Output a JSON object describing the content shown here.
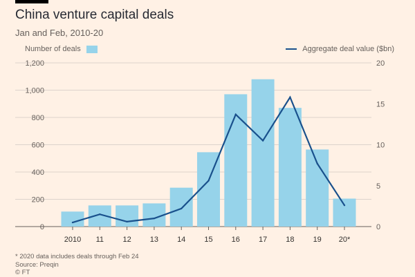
{
  "header": {
    "title": "China venture capital deals",
    "subtitle": "Jan and Feb, 2010-20"
  },
  "legend": {
    "bars_label": "Number of deals",
    "line_label": "Aggregate deal value ($bn)"
  },
  "colors": {
    "bar": "#96d3ea",
    "line": "#19508c",
    "grid": "#dcd3cc",
    "background": "#fff1e5"
  },
  "footer": {
    "note": "* 2020 data includes deals through Feb 24",
    "source": "Source: Preqin",
    "credit": "© FT"
  },
  "chart_data": {
    "type": "bar",
    "title": "China venture capital deals",
    "subtitle": "Jan and Feb, 2010-20",
    "categories": [
      "2010",
      "11",
      "12",
      "13",
      "14",
      "15",
      "16",
      "17",
      "18",
      "19",
      "20*"
    ],
    "series": [
      {
        "name": "Number of deals",
        "type": "bar",
        "axis": "left",
        "values": [
          110,
          155,
          155,
          170,
          285,
          545,
          970,
          1080,
          870,
          565,
          205
        ]
      },
      {
        "name": "Aggregate deal value ($bn)",
        "type": "line",
        "axis": "right",
        "values": [
          0.5,
          1.5,
          0.6,
          1.0,
          2.2,
          5.6,
          13.7,
          10.5,
          15.8,
          7.7,
          2.6
        ]
      }
    ],
    "y_left": {
      "ticks": [
        0,
        200,
        400,
        600,
        800,
        1000,
        1200
      ],
      "tick_labels": [
        "0",
        "200",
        "400",
        "600",
        "800",
        "1,000",
        "1,200"
      ],
      "ylim": [
        0,
        1200
      ]
    },
    "y_right": {
      "ticks": [
        0,
        5,
        10,
        15,
        20
      ],
      "tick_labels": [
        "0",
        "5",
        "10",
        "15",
        "20"
      ],
      "ylim": [
        0,
        20
      ]
    },
    "grid": true,
    "legend_position": "top"
  }
}
